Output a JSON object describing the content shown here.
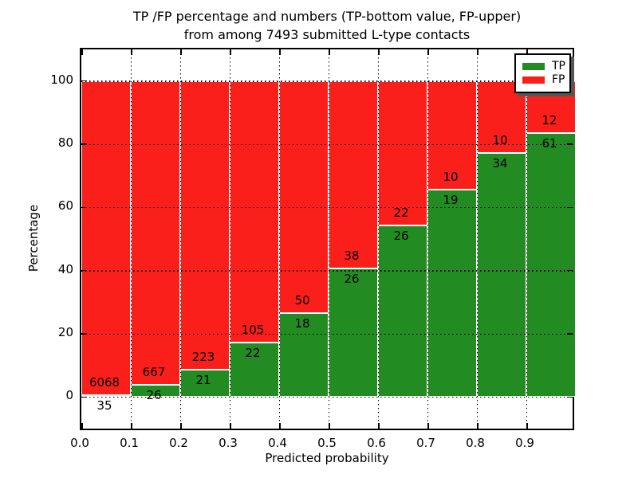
{
  "chart_data": {
    "type": "bar",
    "stacked": true,
    "normalization": "percent_of_bin_total",
    "title_line1": "TP /FP percentage and numbers (TP-bottom value, FP-upper)",
    "title_line2": "from among 7493 submitted L-type contacts",
    "xlabel": "Predicted probability",
    "ylabel": "Percentage",
    "total_contacts": 7493,
    "x_tick_labels": [
      "0.0",
      "0.1",
      "0.2",
      "0.3",
      "0.4",
      "0.5",
      "0.6",
      "0.7",
      "0.8",
      "0.9"
    ],
    "y_ticks": [
      0,
      20,
      40,
      60,
      80,
      100
    ],
    "ylim": [
      -11,
      110
    ],
    "xlim": [
      0.0,
      1.0
    ],
    "grid": "dotted",
    "categories": [
      "0.0-0.1",
      "0.1-0.2",
      "0.2-0.3",
      "0.3-0.4",
      "0.4-0.5",
      "0.5-0.6",
      "0.6-0.7",
      "0.7-0.8",
      "0.8-0.9",
      "0.9-1.0"
    ],
    "series": [
      {
        "name": "TP",
        "color": "#228b22",
        "counts": [
          35,
          26,
          21,
          22,
          18,
          26,
          26,
          19,
          34,
          61
        ]
      },
      {
        "name": "FP",
        "color": "#fa1f1a",
        "counts": [
          6068,
          667,
          223,
          105,
          50,
          38,
          22,
          10,
          10,
          12
        ]
      }
    ],
    "legend": {
      "position": "upper right",
      "entries": [
        {
          "label": "TP",
          "color": "#228b22"
        },
        {
          "label": "FP",
          "color": "#fa1f1a"
        }
      ]
    },
    "colors": {
      "tp": "#228b22",
      "fp": "#fa1f1a",
      "bar_edge": "#ffffff",
      "grid": "#000000",
      "background": "#ffffff"
    }
  }
}
